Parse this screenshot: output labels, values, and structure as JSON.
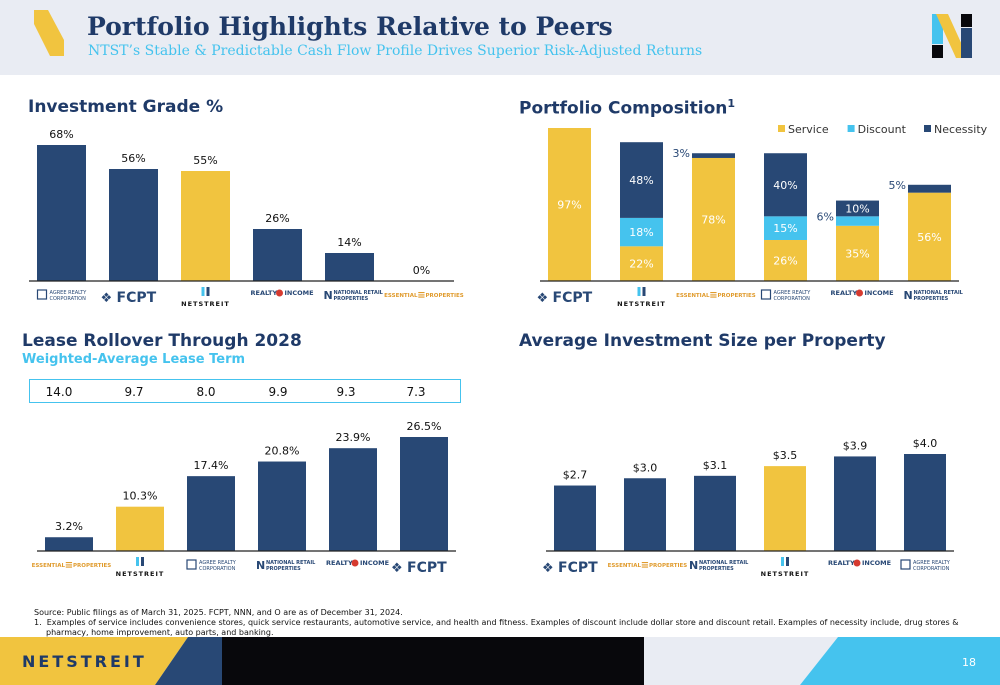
{
  "header": {
    "title": "Portfolio Highlights Relative to Peers",
    "subtitle": "NTST’s Stable & Predictable Cash Flow Profile Drives Superior Risk-Adjusted Returns"
  },
  "colors": {
    "navy": "#284875",
    "gold": "#f1c43f",
    "cyan": "#45c3ee",
    "black": "#08080c",
    "grey": "#e9ecf3"
  },
  "logos": {
    "agree": {
      "line1": "AGREE REALTY",
      "line2": "CORPORATION"
    },
    "fcpt": "FCPT",
    "netstreit": "NETSTREIT",
    "realty_income": {
      "line1": "REALTY",
      "line2": "INCOME"
    },
    "nnn": {
      "line1": "NATIONAL RETAIL",
      "line2": "PROPERTIES"
    },
    "essential": {
      "line1": "ESSENTIAL",
      "line2": "PROPERTIES"
    }
  },
  "chart_data": [
    {
      "type": "bar",
      "title": "Investment Grade %",
      "categories": [
        "agree",
        "fcpt",
        "netstreit",
        "realty_income",
        "nnn",
        "essential"
      ],
      "values": [
        68,
        56,
        55,
        26,
        14,
        0
      ],
      "labels": [
        "68%",
        "56%",
        "55%",
        "26%",
        "14%",
        "0%"
      ],
      "highlight": [
        false,
        false,
        true,
        false,
        false,
        false
      ],
      "ylim": [
        0,
        68
      ]
    },
    {
      "type": "bar",
      "title": "Portfolio Composition",
      "title_sup": "1",
      "stacked": true,
      "categories": [
        "fcpt",
        "netstreit",
        "essential",
        "agree",
        "realty_income",
        "nnn"
      ],
      "series": [
        {
          "name": "Service",
          "color": "#f1c43f",
          "values": [
            97,
            22,
            78,
            26,
            35,
            56
          ],
          "labels": [
            "97%",
            "22%",
            "78%",
            "26%",
            "35%",
            "56%"
          ]
        },
        {
          "name": "Discount",
          "color": "#45c3ee",
          "values": [
            0,
            18,
            0,
            15,
            6,
            0
          ],
          "labels": [
            "",
            "18%",
            "",
            "15%",
            "6%",
            ""
          ]
        },
        {
          "name": "Necessity",
          "color": "#284875",
          "values": [
            0,
            48,
            3,
            40,
            10,
            5
          ],
          "labels": [
            "",
            "48%",
            "3%",
            "40%",
            "10%",
            "5%"
          ]
        }
      ],
      "legend": "top-right",
      "ylim": [
        0,
        97
      ]
    },
    {
      "type": "bar",
      "title": "Lease Rollover Through 2028",
      "subtitle": "Weighted-Average Lease Term",
      "categories": [
        "essential",
        "netstreit",
        "agree",
        "nnn",
        "realty_income",
        "fcpt"
      ],
      "waltl": [
        "14.0",
        "9.7",
        "8.0",
        "9.9",
        "9.3",
        "7.3"
      ],
      "values": [
        3.2,
        10.3,
        17.4,
        20.8,
        23.9,
        26.5
      ],
      "labels": [
        "3.2%",
        "10.3%",
        "17.4%",
        "20.8%",
        "23.9%",
        "26.5%"
      ],
      "highlight": [
        false,
        true,
        false,
        false,
        false,
        false
      ],
      "ylim": [
        0,
        26.5
      ]
    },
    {
      "type": "bar",
      "title": "Average Investment Size per Property",
      "categories": [
        "fcpt",
        "essential",
        "nnn",
        "netstreit",
        "realty_income",
        "agree"
      ],
      "values": [
        2.7,
        3.0,
        3.1,
        3.5,
        3.9,
        4.0
      ],
      "labels": [
        "$2.7",
        "$3.0",
        "$3.1",
        "$3.5",
        "$3.9",
        "$4.0"
      ],
      "highlight": [
        false,
        false,
        false,
        true,
        false,
        false
      ],
      "ylim": [
        0,
        4.0
      ]
    }
  ],
  "footer": {
    "source": "Source: Public filings as of March 31, 2025. FCPT, NNN, and O are as of December 31, 2024.",
    "note1": "1.  Examples of service includes convenience stores, quick service restaurants, automotive service, and health and fitness. Examples of discount include dollar store and discount retail. Examples of necessity include, drug stores & pharmacy, home improvement, auto parts, and banking.",
    "brand": "NETSTREIT",
    "page": "18"
  }
}
